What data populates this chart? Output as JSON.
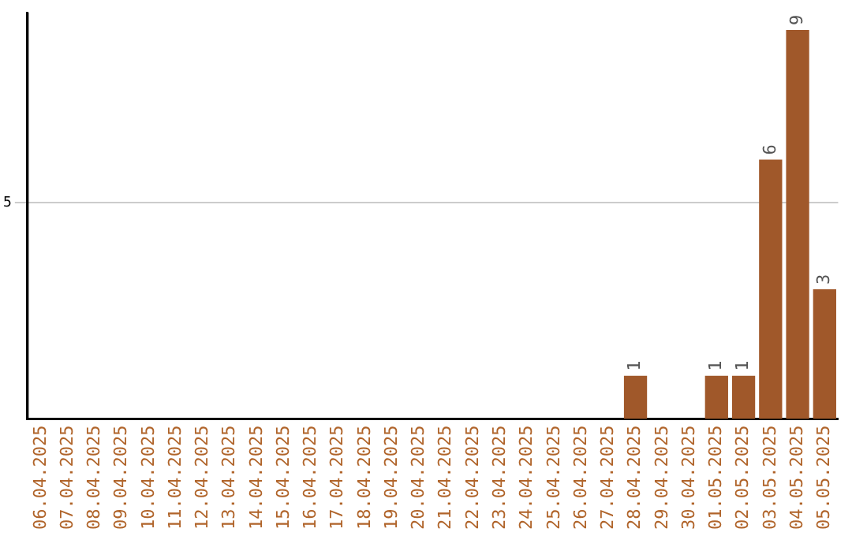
{
  "chart_data": {
    "type": "bar",
    "categories": [
      "06.04.2025",
      "07.04.2025",
      "08.04.2025",
      "09.04.2025",
      "10.04.2025",
      "11.04.2025",
      "12.04.2025",
      "13.04.2025",
      "14.04.2025",
      "15.04.2025",
      "16.04.2025",
      "17.04.2025",
      "18.04.2025",
      "19.04.2025",
      "20.04.2025",
      "21.04.2025",
      "22.04.2025",
      "23.04.2025",
      "24.04.2025",
      "25.04.2025",
      "26.04.2025",
      "27.04.2025",
      "28.04.2025",
      "29.04.2025",
      "30.04.2025",
      "01.05.2025",
      "02.05.2025",
      "03.05.2025",
      "04.05.2025",
      "05.05.2025"
    ],
    "values": [
      null,
      null,
      null,
      null,
      null,
      null,
      null,
      null,
      null,
      null,
      null,
      null,
      null,
      null,
      null,
      null,
      null,
      null,
      null,
      null,
      null,
      null,
      1,
      null,
      null,
      1,
      1,
      6,
      9,
      3
    ],
    "value_labels": [
      null,
      null,
      null,
      null,
      null,
      null,
      null,
      null,
      null,
      null,
      null,
      null,
      null,
      null,
      null,
      null,
      null,
      null,
      null,
      null,
      null,
      null,
      "1",
      null,
      null,
      "1",
      "1",
      "6",
      "9",
      "3"
    ],
    "color": "#a0582a",
    "ylim": [
      0,
      9.4
    ],
    "yticks": [
      5
    ],
    "grid": "y",
    "legend": false
  }
}
